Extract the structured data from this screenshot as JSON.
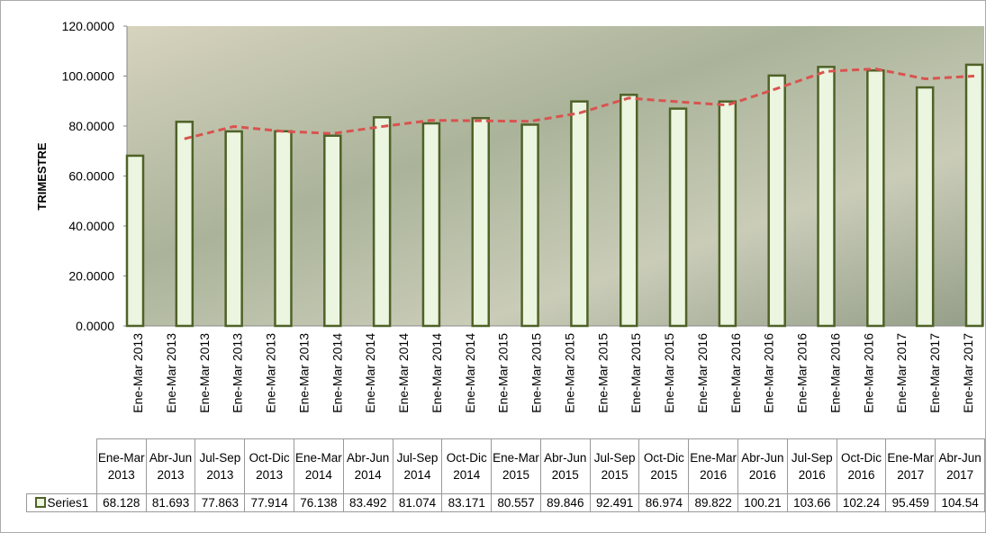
{
  "chart_data": {
    "type": "bar",
    "y_label": "TRIMESTRE",
    "axis_categories": [
      "Ene-Mar 2013",
      "Ene-Mar 2013",
      "Ene-Mar 2013",
      "Ene-Mar 2013",
      "Ene-Mar 2013",
      "Ene-Mar 2013",
      "Ene-Mar 2014",
      "Ene-Mar 2014",
      "Ene-Mar 2014",
      "Ene-Mar 2014",
      "Ene-Mar 2014",
      "Ene-Mar 2015",
      "Ene-Mar 2015",
      "Ene-Mar 2015",
      "Ene-Mar 2015",
      "Ene-Mar 2015",
      "Ene-Mar 2015",
      "Ene-Mar 2016",
      "Ene-Mar 2016",
      "Ene-Mar 2016",
      "Ene-Mar 2016",
      "Ene-Mar 2016",
      "Ene-Mar 2016",
      "Ene-Mar 2017",
      "Ene-Mar 2017",
      "Ene-Mar 2017"
    ],
    "categories": [
      "Ene-Mar 2013",
      "Abr-Jun 2013",
      "Jul-Sep 2013",
      "Oct-Dic 2013",
      "Ene-Mar 2014",
      "Abr-Jun 2014",
      "Jul-Sep 2014",
      "Oct-Dic 2014",
      "Ene-Mar 2015",
      "Abr-Jun 2015",
      "Jul-Sep 2015",
      "Oct-Dic 2015",
      "Ene-Mar 2016",
      "Abr-Jun 2016",
      "Jul-Sep 2016",
      "Oct-Dic 2016",
      "Ene-Mar 2017",
      "Abr-Jun 2017"
    ],
    "series": [
      {
        "name": "Series1",
        "color": "#ebf5df",
        "stroke": "#4f6228",
        "values": [
          68.128,
          81.693,
          77.863,
          77.914,
          76.138,
          83.492,
          81.074,
          83.171,
          80.557,
          89.846,
          92.491,
          86.974,
          89.822,
          100.21,
          103.66,
          102.24,
          95.459,
          104.54
        ]
      }
    ],
    "trendline": {
      "color": "#d9534f",
      "values": [
        null,
        74.9,
        79.8,
        77.9,
        77.0,
        79.8,
        82.3,
        82.1,
        81.9,
        85.2,
        91.2,
        89.7,
        88.4,
        95.0,
        101.9,
        102.9,
        98.9,
        100.0
      ]
    },
    "ylim": [
      0,
      120
    ],
    "yticks": [
      {
        "value": 0,
        "label": "0.0000"
      },
      {
        "value": 20,
        "label": "20.0000"
      },
      {
        "value": 40,
        "label": "40.0000"
      },
      {
        "value": 60,
        "label": "60.0000"
      },
      {
        "value": 80,
        "label": "80.0000"
      },
      {
        "value": 100,
        "label": "100.0000"
      },
      {
        "value": 120,
        "label": "120.0000"
      }
    ]
  }
}
